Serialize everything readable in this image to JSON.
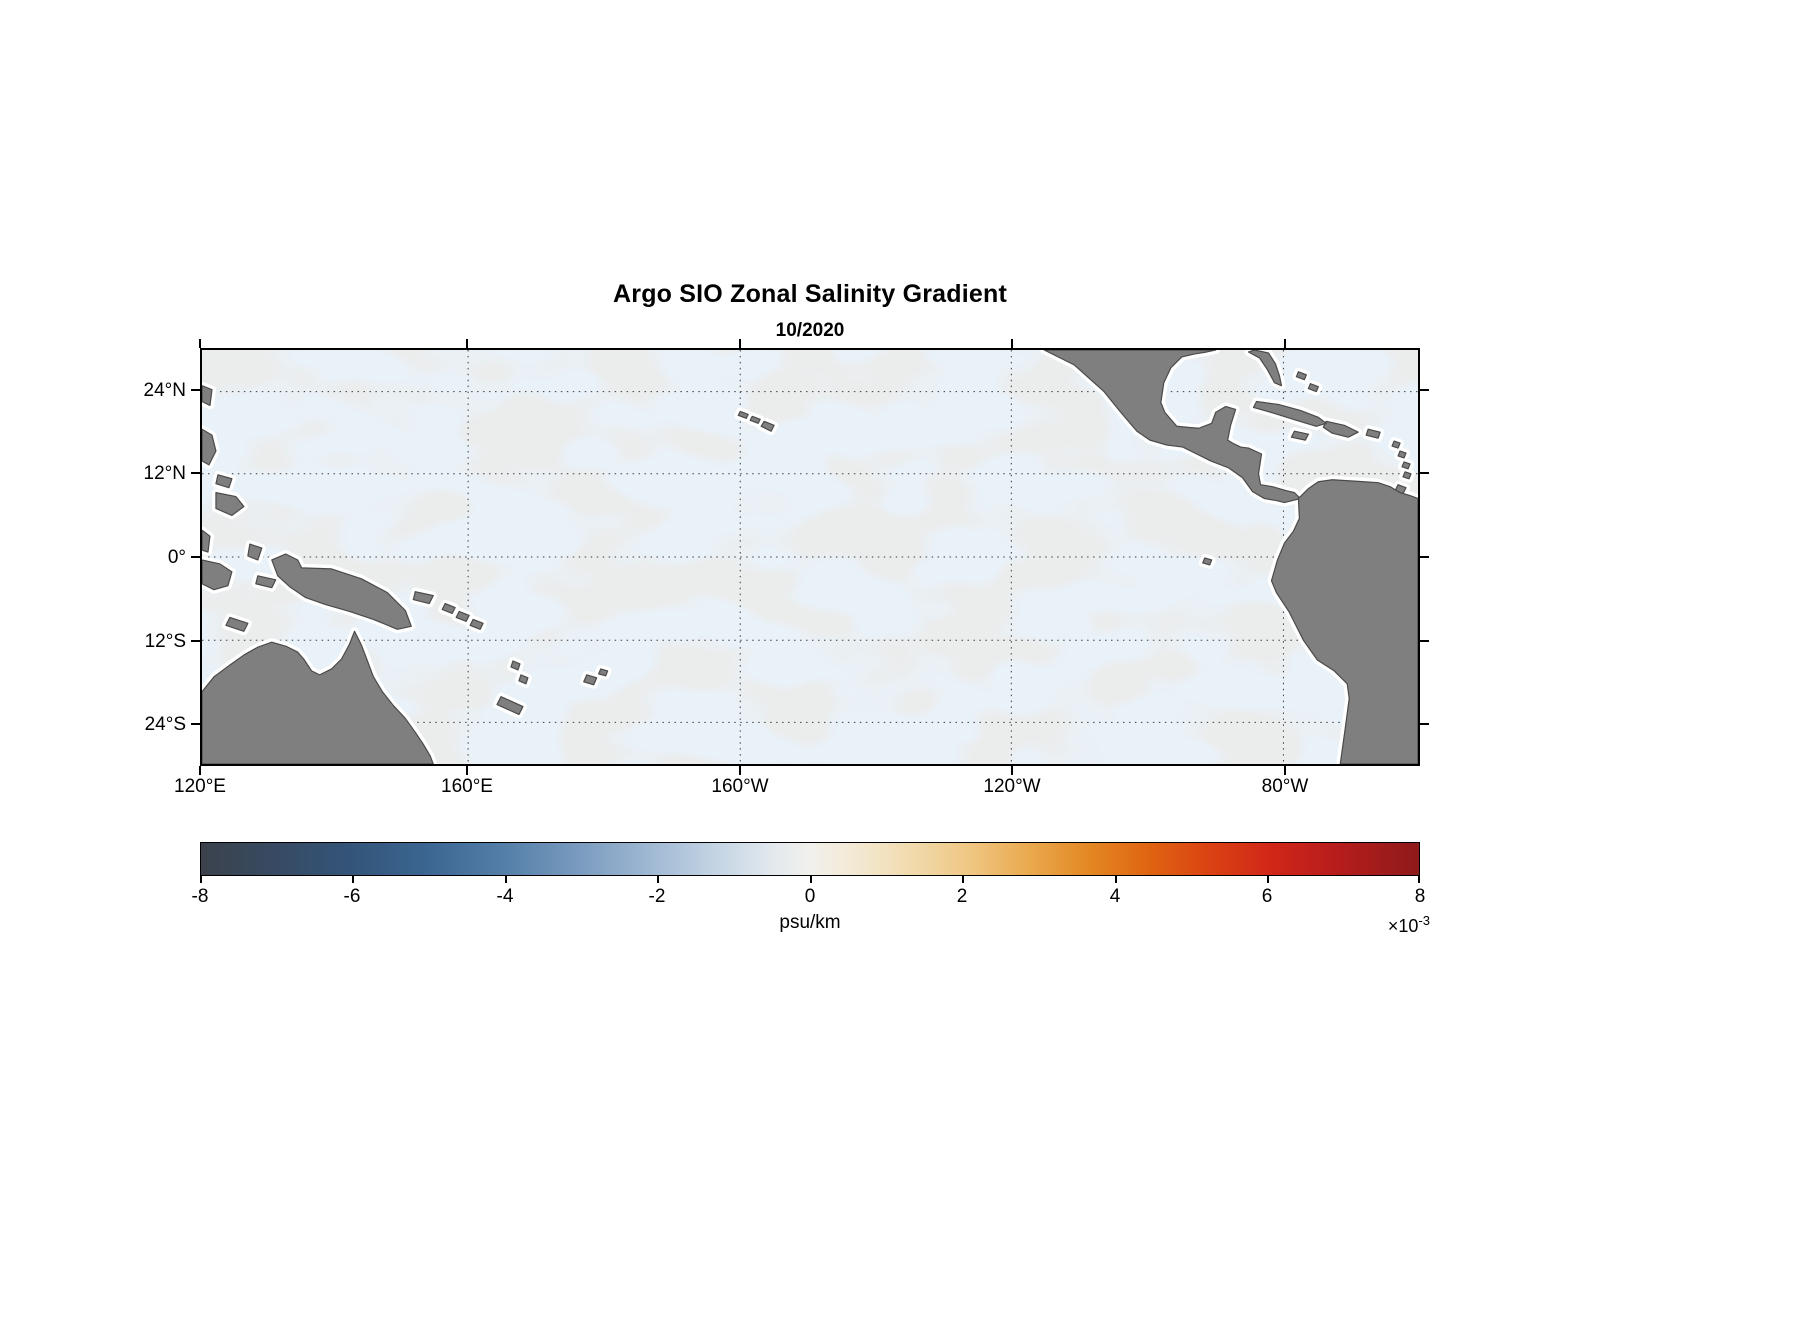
{
  "figure": {
    "title": "Argo SIO Zonal Salinity Gradient",
    "subtitle": "10/2020"
  },
  "axes": {
    "xticks": [
      "120°E",
      "160°E",
      "160°W",
      "120°W",
      "80°W"
    ],
    "yticks": [
      "24°N",
      "12°N",
      "0°",
      "12°S",
      "24°S"
    ]
  },
  "colorbar": {
    "ticks": [
      "-8",
      "-6",
      "-4",
      "-2",
      "0",
      "2",
      "4",
      "6",
      "8"
    ],
    "label": "psu/km",
    "multiplier_base": "×10",
    "multiplier_exp": "-3",
    "stops": [
      [
        0,
        "#3b424c"
      ],
      [
        6,
        "#374a62"
      ],
      [
        12,
        "#335478"
      ],
      [
        18,
        "#3a648f"
      ],
      [
        24,
        "#4f7ba5"
      ],
      [
        30,
        "#7396bb"
      ],
      [
        36,
        "#9ab4d0"
      ],
      [
        42,
        "#c2d3e3"
      ],
      [
        47,
        "#e3e9ee"
      ],
      [
        50,
        "#f1f0ec"
      ],
      [
        53,
        "#f3ebd9"
      ],
      [
        58,
        "#f1dcb0"
      ],
      [
        63,
        "#efc784"
      ],
      [
        68,
        "#eaa94e"
      ],
      [
        73,
        "#e38722"
      ],
      [
        78,
        "#df6311"
      ],
      [
        83,
        "#da4113"
      ],
      [
        88,
        "#d02618"
      ],
      [
        93,
        "#b81d1c"
      ],
      [
        100,
        "#8e1a1a"
      ]
    ]
  },
  "map_colors": {
    "ocean_base": "#ebecec",
    "ocean_blob": "#d0e2f0",
    "land_fill": "#7f7f7f",
    "land_edge": "#4a4a4a",
    "no_data_margin": "#ffffff"
  },
  "chart_data": {
    "type": "heatmap",
    "title": "Argo SIO Zonal Salinity Gradient",
    "subtitle": "10/2020",
    "variable": "zonal salinity gradient",
    "units": "psu/km",
    "scale_factor": "1e-3",
    "colorbar_ticks": [
      -8,
      -6,
      -4,
      -2,
      0,
      2,
      4,
      6,
      8
    ],
    "colorbar_range": [
      -0.008,
      0.008
    ],
    "x_axis": {
      "ticks": [
        "120°E",
        "160°E",
        "160°W",
        "120°W",
        "80°W"
      ],
      "range": [
        "120°E",
        "60°W"
      ]
    },
    "y_axis": {
      "ticks": [
        "24°N",
        "12°N",
        "0°",
        "12°S",
        "24°S"
      ],
      "range": [
        "30°S",
        "30°N"
      ]
    },
    "region": "tropical Pacific Ocean",
    "grid": true,
    "legend_position": "horizontal colorbar below map",
    "observed_pattern": "Values across the basin are close to zero (roughly within ±0.002 psu/km), rendered as a mottled mixture of very pale blue (weakly negative) and pale gray (near zero) patches; land is masked dark gray with a white no-data margin along coasts."
  }
}
